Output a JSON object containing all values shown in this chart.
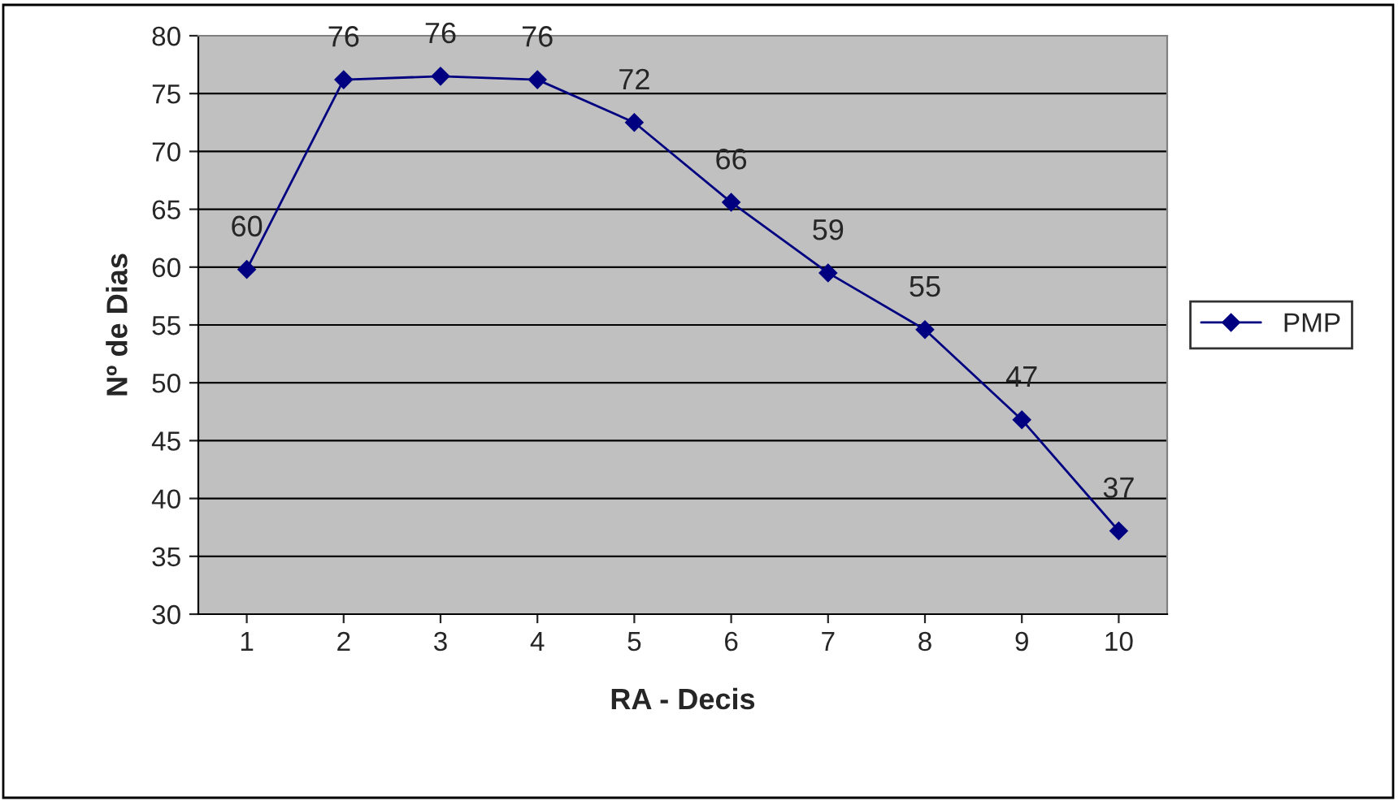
{
  "chart_data": {
    "type": "line",
    "xlabel": "RA - Decis",
    "ylabel": "Nº de Dias",
    "categories": [
      "1",
      "2",
      "3",
      "4",
      "5",
      "6",
      "7",
      "8",
      "9",
      "10"
    ],
    "series": [
      {
        "name": "PMP",
        "color": "#000080",
        "values": [
          59.8,
          76.2,
          76.5,
          76.2,
          72.5,
          65.6,
          59.5,
          54.6,
          46.8,
          37.2
        ],
        "value_labels": [
          "60",
          "76",
          "76",
          "76",
          "72",
          "66",
          "59",
          "55",
          "47",
          "37"
        ]
      }
    ],
    "ylim": [
      30,
      80
    ],
    "yticks": [
      30,
      35,
      40,
      45,
      50,
      55,
      60,
      65,
      70,
      75,
      80
    ],
    "grid": "y",
    "legend": "right",
    "marker": "diamond",
    "line_style": "solid"
  }
}
